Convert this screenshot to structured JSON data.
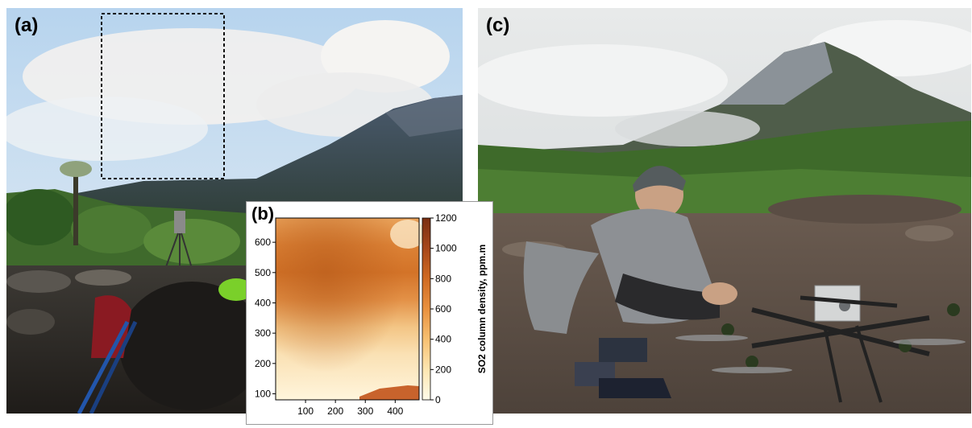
{
  "labels": {
    "a": "(a)",
    "b": "(b)",
    "c": "(c)"
  },
  "chart_data": {
    "type": "heatmap",
    "title": "",
    "xlabel": "",
    "ylabel": "",
    "xlim": [
      0,
      480
    ],
    "ylim": [
      80,
      680
    ],
    "x_ticks": [
      "100",
      "200",
      "300",
      "400"
    ],
    "y_ticks": [
      "100",
      "200",
      "300",
      "400",
      "500",
      "600"
    ],
    "colorbar": {
      "label": "SO2 column density, ppm.m",
      "ticks": [
        "0",
        "200",
        "400",
        "600",
        "800",
        "1000",
        "1200"
      ],
      "min": 0,
      "max": 1200,
      "colors": [
        "#fffbe9",
        "#fde5b0",
        "#f7c173",
        "#e9913f",
        "#cf6a22",
        "#a8481a",
        "#7a2e12"
      ]
    }
  }
}
